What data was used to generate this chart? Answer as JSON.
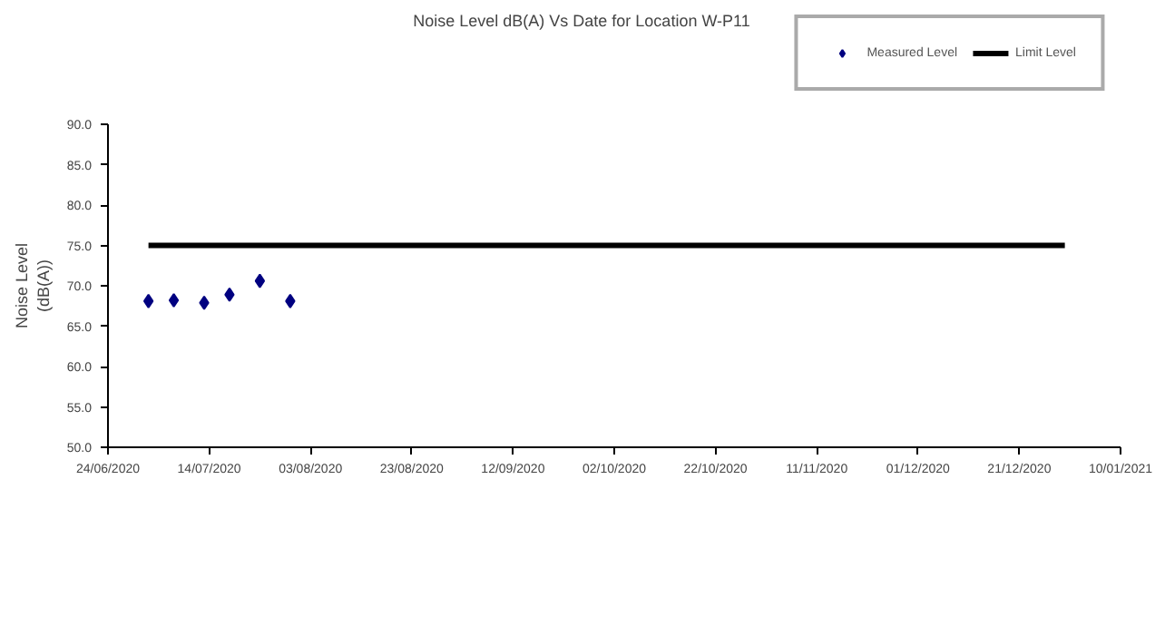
{
  "chart_data": {
    "type": "scatter",
    "title": "Noise Level dB(A) Vs Date for Location W-P11",
    "ylabel": "Noise Level\n(dB(A))",
    "series": [
      {
        "name": "Measured Level",
        "color": "#000080",
        "marker": "diamond",
        "x": [
          "2020-07-02",
          "2020-07-07",
          "2020-07-13",
          "2020-07-18",
          "2020-07-24",
          "2020-07-30"
        ],
        "values": [
          68.1,
          68.2,
          67.9,
          68.9,
          70.6,
          68.1
        ]
      },
      {
        "name": "Limit Level",
        "type": "line",
        "color": "#000000",
        "line_style": "solid",
        "x": [
          "2020-07-02",
          "2020-12-30"
        ],
        "values": [
          75,
          75
        ]
      }
    ],
    "xlim": [
      "2020-06-24",
      "2021-01-10"
    ],
    "xticks": [
      {
        "value": "2020-06-24",
        "label": "24/06/2020"
      },
      {
        "value": "2020-07-14",
        "label": "14/07/2020"
      },
      {
        "value": "2020-08-03",
        "label": "03/08/2020"
      },
      {
        "value": "2020-08-23",
        "label": "23/08/2020"
      },
      {
        "value": "2020-09-12",
        "label": "12/09/2020"
      },
      {
        "value": "2020-10-02",
        "label": "02/10/2020"
      },
      {
        "value": "2020-10-22",
        "label": "22/10/2020"
      },
      {
        "value": "2020-11-11",
        "label": "11/11/2020"
      },
      {
        "value": "2020-12-01",
        "label": "01/12/2020"
      },
      {
        "value": "2020-12-21",
        "label": "21/12/2020"
      },
      {
        "value": "2021-01-10",
        "label": "10/01/2021"
      }
    ],
    "ylim": [
      50,
      90
    ],
    "yticks": [
      {
        "value": 50,
        "label": "50.0"
      },
      {
        "value": 55,
        "label": "55.0"
      },
      {
        "value": 60,
        "label": "60.0"
      },
      {
        "value": 65,
        "label": "65.0"
      },
      {
        "value": 70,
        "label": "70.0"
      },
      {
        "value": 75,
        "label": "75.0"
      },
      {
        "value": 80,
        "label": "80.0"
      },
      {
        "value": 85,
        "label": "85.0"
      },
      {
        "value": 90,
        "label": "90.0"
      }
    ],
    "grid": false,
    "legend": "top right"
  }
}
